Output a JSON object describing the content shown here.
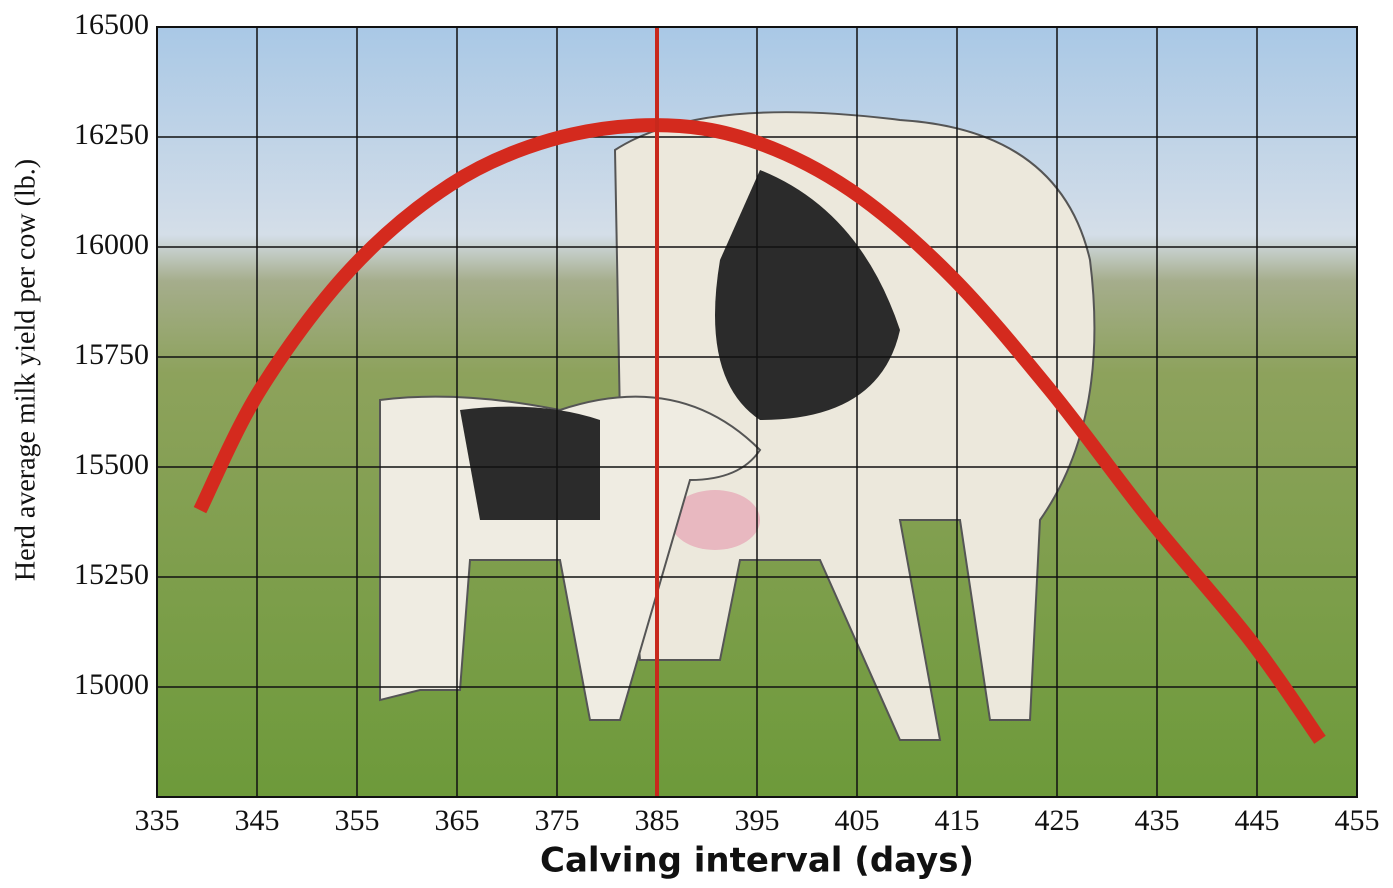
{
  "chart_data": {
    "type": "line",
    "x_label": "Calving interval (days)",
    "y_label": "Herd average milk yield per cow (lb.)",
    "x": [
      339.3,
      345.3,
      354.3,
      364.3,
      374.3,
      384.8,
      394.3,
      404.3,
      414.3,
      424.3,
      434.3,
      444.3,
      451.3
    ],
    "series": [
      {
        "color": "#d42a1e",
        "values": [
          15402,
          15675,
          15948,
          16141,
          16243,
          16277,
          16243,
          16130,
          15936,
          15675,
          15380,
          15107,
          14880
        ]
      }
    ],
    "xlim": [
      335,
      455
    ],
    "xticks": [
      335,
      345,
      355,
      365,
      375,
      385,
      395,
      405,
      415,
      425,
      435,
      445,
      455
    ],
    "ylim": [
      14750,
      16500
    ],
    "yticks": [
      15000,
      15250,
      15500,
      15750,
      16000,
      16250,
      16500
    ],
    "vline": 385,
    "vline_color": "#c8281c",
    "grid": true
  }
}
